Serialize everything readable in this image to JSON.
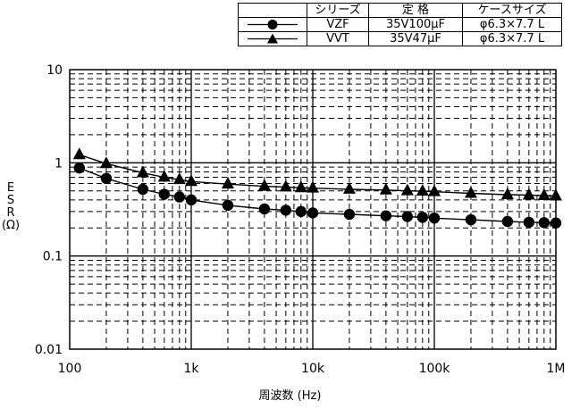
{
  "chart_data": {
    "type": "line",
    "xscale": "log",
    "yscale": "log",
    "xlim": [
      100,
      1000000
    ],
    "ylim": [
      0.01,
      10
    ],
    "xlabel": "周波数 (Hz)",
    "ylabel": [
      "E",
      "S",
      "R",
      "(Ω)"
    ],
    "x_ticks": [
      {
        "value": 100,
        "label": "100"
      },
      {
        "value": 1000,
        "label": "1k"
      },
      {
        "value": 10000,
        "label": "10k"
      },
      {
        "value": 100000,
        "label": "100k"
      },
      {
        "value": 1000000,
        "label": "1M"
      }
    ],
    "y_ticks": [
      {
        "value": 10,
        "label": "10"
      },
      {
        "value": 1,
        "label": "1"
      },
      {
        "value": 0.1,
        "label": "0.1"
      },
      {
        "value": 0.01,
        "label": "0.01"
      }
    ],
    "grid": true,
    "legend_position": "top-right",
    "series": [
      {
        "name": "VZF",
        "rating": "35V100μF",
        "case_size": "φ6.3×7.7 L",
        "marker": "circle",
        "x": [
          120,
          200,
          400,
          600,
          800,
          1000,
          2000,
          4000,
          6000,
          8000,
          10000,
          20000,
          40000,
          60000,
          80000,
          100000,
          200000,
          400000,
          600000,
          800000,
          1000000
        ],
        "y": [
          0.88,
          0.68,
          0.52,
          0.46,
          0.43,
          0.4,
          0.35,
          0.32,
          0.31,
          0.3,
          0.29,
          0.28,
          0.27,
          0.265,
          0.26,
          0.255,
          0.245,
          0.235,
          0.23,
          0.228,
          0.226
        ]
      },
      {
        "name": "VVT",
        "rating": "35V47μF",
        "case_size": "φ6.3×7.7 L",
        "marker": "triangle",
        "x": [
          120,
          200,
          400,
          600,
          800,
          1000,
          2000,
          4000,
          6000,
          8000,
          10000,
          20000,
          40000,
          60000,
          80000,
          100000,
          200000,
          400000,
          600000,
          800000,
          1000000
        ],
        "y": [
          1.22,
          0.98,
          0.78,
          0.7,
          0.66,
          0.63,
          0.59,
          0.56,
          0.55,
          0.54,
          0.535,
          0.52,
          0.51,
          0.5,
          0.495,
          0.49,
          0.47,
          0.455,
          0.45,
          0.445,
          0.44
        ]
      }
    ]
  },
  "legend": {
    "headers": [
      "シリーズ",
      "定 格",
      "ケースサイズ"
    ]
  }
}
